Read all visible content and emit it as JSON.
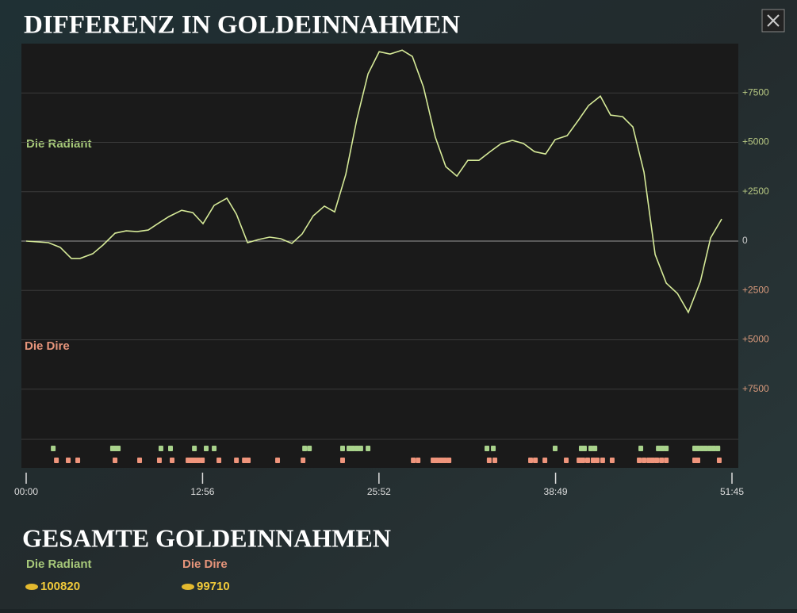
{
  "header": {
    "title": "DIFFERENZ IN GOLDEINNAHMEN"
  },
  "chart_data": {
    "type": "line",
    "side_labels": [
      "Die Radiant",
      "Die Dire"
    ],
    "color": "#d6ea98",
    "x": [
      0,
      49,
      98,
      150,
      199,
      237,
      293,
      338,
      391,
      440,
      488,
      537,
      579,
      628,
      684,
      733,
      778,
      827,
      883,
      925,
      974,
      1023,
      1071,
      1120,
      1169,
      1214,
      1263,
      1312,
      1357,
      1406,
      1455,
      1504,
      1553,
      1601,
      1654,
      1699,
      1748,
      1800,
      1846,
      1895,
      1943,
      1992,
      2041,
      2090,
      2139,
      2188,
      2236,
      2285,
      2327,
      2380,
      2428,
      2474,
      2526,
      2571,
      2624,
      2669,
      2718,
      2767,
      2816,
      2865,
      2913,
      2966,
      3011,
      3060
    ],
    "values": [
      0,
      -40,
      -80,
      -320,
      -880,
      -880,
      -640,
      -200,
      400,
      520,
      480,
      560,
      880,
      1240,
      1560,
      1440,
      880,
      1810,
      2170,
      1360,
      -80,
      80,
      200,
      120,
      -120,
      360,
      1280,
      1770,
      1480,
      3370,
      6180,
      8470,
      9590,
      9470,
      9670,
      9350,
      7790,
      5260,
      3770,
      3290,
      4090,
      4090,
      4530,
      4940,
      5100,
      4940,
      4530,
      4410,
      5140,
      5340,
      6100,
      6860,
      7340,
      6380,
      6300,
      5780,
      3490,
      -680,
      -2130,
      -2650,
      -3610,
      -2050,
      160,
      1120
    ],
    "xlim": [
      0,
      3105
    ],
    "xticks": [
      {
        "value": 0,
        "label": "00:00"
      },
      {
        "value": 776,
        "label": "12:56"
      },
      {
        "value": 1552,
        "label": "25:52"
      },
      {
        "value": 2329,
        "label": "38:49"
      },
      {
        "value": 3105,
        "label": "51:45"
      }
    ],
    "ylim": [
      -10000,
      10000
    ],
    "yticks": [
      {
        "value": 7500,
        "label": "+7500"
      },
      {
        "value": 5000,
        "label": "+5000"
      },
      {
        "value": 2500,
        "label": "+2500"
      },
      0,
      {
        "value": -2500,
        "label": "+2500"
      },
      {
        "value": -5000,
        "label": "+5000"
      },
      {
        "value": -7500,
        "label": "+7500"
      }
    ],
    "grid": true,
    "events": {
      "radiant": {
        "color": "#a9d38c",
        "x": [
          119,
          380,
          394,
          405,
          593,
          635,
          740,
          792,
          827,
          1225,
          1246,
          1392,
          1420,
          1437,
          1455,
          1472,
          1504,
          2027,
          2055,
          2327,
          2442,
          2456,
          2484,
          2502,
          2704,
          2781,
          2798,
          2816,
          2941,
          2955,
          2973,
          2990,
          3008,
          3025,
          3043
        ]
      },
      "dire": {
        "color": "#f0957c",
        "x": [
          133,
          185,
          227,
          391,
          499,
          586,
          642,
          712,
          726,
          740,
          757,
          775,
          848,
          925,
          960,
          977,
          1106,
          1218,
          1392,
          1703,
          1724,
          1790,
          1807,
          1825,
          1842,
          1860,
          2037,
          2062,
          2219,
          2240,
          2282,
          2376,
          2432,
          2449,
          2470,
          2494,
          2512,
          2536,
          2578,
          2697,
          2718,
          2739,
          2756,
          2774,
          2795,
          2816,
          2941,
          2955,
          3049
        ]
      }
    }
  },
  "totals": {
    "title": "GESAMTE GOLDEINNAHMEN",
    "teams": [
      {
        "name": "Die Radiant",
        "gold": 100820
      },
      {
        "name": "Die Dire",
        "gold": 99710
      }
    ]
  }
}
